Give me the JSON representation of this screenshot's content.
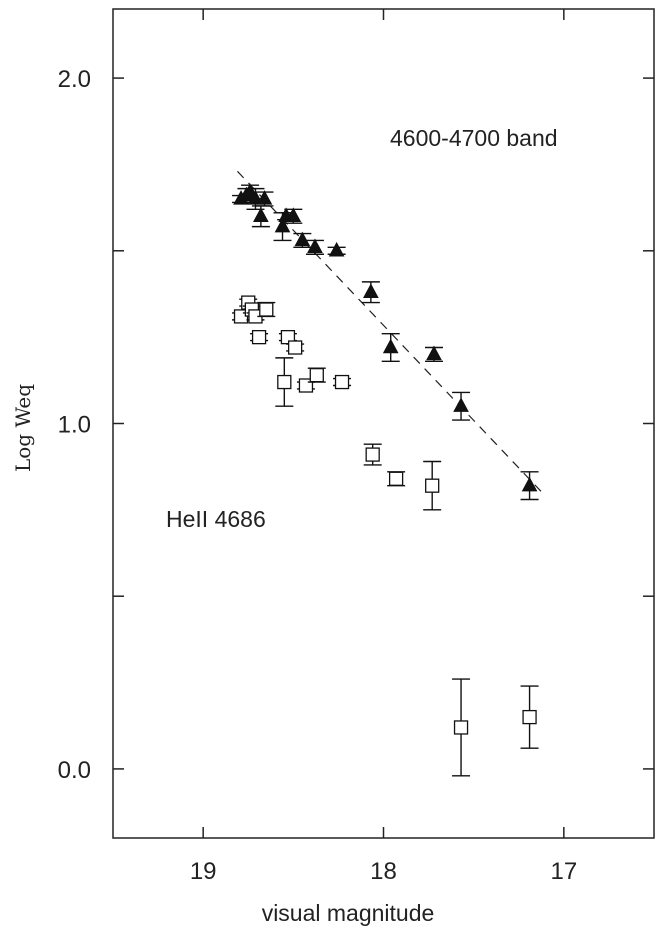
{
  "chart_data": {
    "type": "scatter",
    "title": "",
    "xlabel": "visual magnitude",
    "ylabel": "Log Weq",
    "xlim": [
      19.5,
      16.5
    ],
    "ylim": [
      -0.2,
      2.2
    ],
    "x_reversed": true,
    "grid": false,
    "x_ticks": [
      19,
      18,
      17
    ],
    "x_tick_labels": [
      "19",
      "18",
      "17"
    ],
    "y_ticks": [
      0.0,
      0.5,
      1.0,
      1.5,
      2.0
    ],
    "y_tick_labels": [
      "0.0",
      "",
      "1.0",
      "",
      "2.0"
    ],
    "annotations": [
      "4600-4700 band",
      "HeII 4686"
    ],
    "series": [
      {
        "marker": "filled-triangle",
        "color": "#111111",
        "points": [
          {
            "x": 18.79,
            "y": 1.65,
            "err": 0.01
          },
          {
            "x": 18.76,
            "y": 1.66,
            "err": 0.02
          },
          {
            "x": 18.74,
            "y": 1.67,
            "err": 0.02
          },
          {
            "x": 18.71,
            "y": 1.65,
            "err": 0.03
          },
          {
            "x": 18.68,
            "y": 1.6,
            "err": 0.03
          },
          {
            "x": 18.66,
            "y": 1.65,
            "err": 0.02
          },
          {
            "x": 18.56,
            "y": 1.57,
            "err": 0.04
          },
          {
            "x": 18.54,
            "y": 1.6,
            "err": 0.01
          },
          {
            "x": 18.5,
            "y": 1.6,
            "err": 0.02
          },
          {
            "x": 18.45,
            "y": 1.53,
            "err": 0.02
          },
          {
            "x": 18.38,
            "y": 1.51,
            "err": 0.02
          },
          {
            "x": 18.26,
            "y": 1.5,
            "err": 0.01
          },
          {
            "x": 18.07,
            "y": 1.38,
            "err": 0.03
          },
          {
            "x": 17.96,
            "y": 1.22,
            "err": 0.04
          },
          {
            "x": 17.72,
            "y": 1.2,
            "err": 0.02
          },
          {
            "x": 17.57,
            "y": 1.05,
            "err": 0.04
          },
          {
            "x": 17.19,
            "y": 0.82,
            "err": 0.04
          }
        ]
      },
      {
        "marker": "open-square",
        "color": "#111111",
        "points": [
          {
            "x": 18.79,
            "y": 1.31,
            "err": 0.01
          },
          {
            "x": 18.75,
            "y": 1.35,
            "err": 0.01
          },
          {
            "x": 18.73,
            "y": 1.33,
            "err": 0.01
          },
          {
            "x": 18.71,
            "y": 1.31,
            "err": 0.01
          },
          {
            "x": 18.69,
            "y": 1.25,
            "err": 0.01
          },
          {
            "x": 18.65,
            "y": 1.33,
            "err": 0.02
          },
          {
            "x": 18.55,
            "y": 1.12,
            "err": 0.07
          },
          {
            "x": 18.53,
            "y": 1.25,
            "err": 0.01
          },
          {
            "x": 18.49,
            "y": 1.22,
            "err": 0.01
          },
          {
            "x": 18.43,
            "y": 1.11,
            "err": 0.01
          },
          {
            "x": 18.37,
            "y": 1.14,
            "err": 0.02
          },
          {
            "x": 18.23,
            "y": 1.12,
            "err": 0.01
          },
          {
            "x": 18.06,
            "y": 0.91,
            "err": 0.03
          },
          {
            "x": 17.93,
            "y": 0.84,
            "err": 0.02
          },
          {
            "x": 17.73,
            "y": 0.82,
            "err": 0.07
          },
          {
            "x": 17.57,
            "y": 0.12,
            "err": 0.14
          },
          {
            "x": 17.19,
            "y": 0.15,
            "err": 0.09
          }
        ]
      }
    ],
    "fit_line": {
      "style": "dashed",
      "x": [
        18.81,
        17.12
      ],
      "y": [
        1.73,
        0.8
      ]
    }
  }
}
